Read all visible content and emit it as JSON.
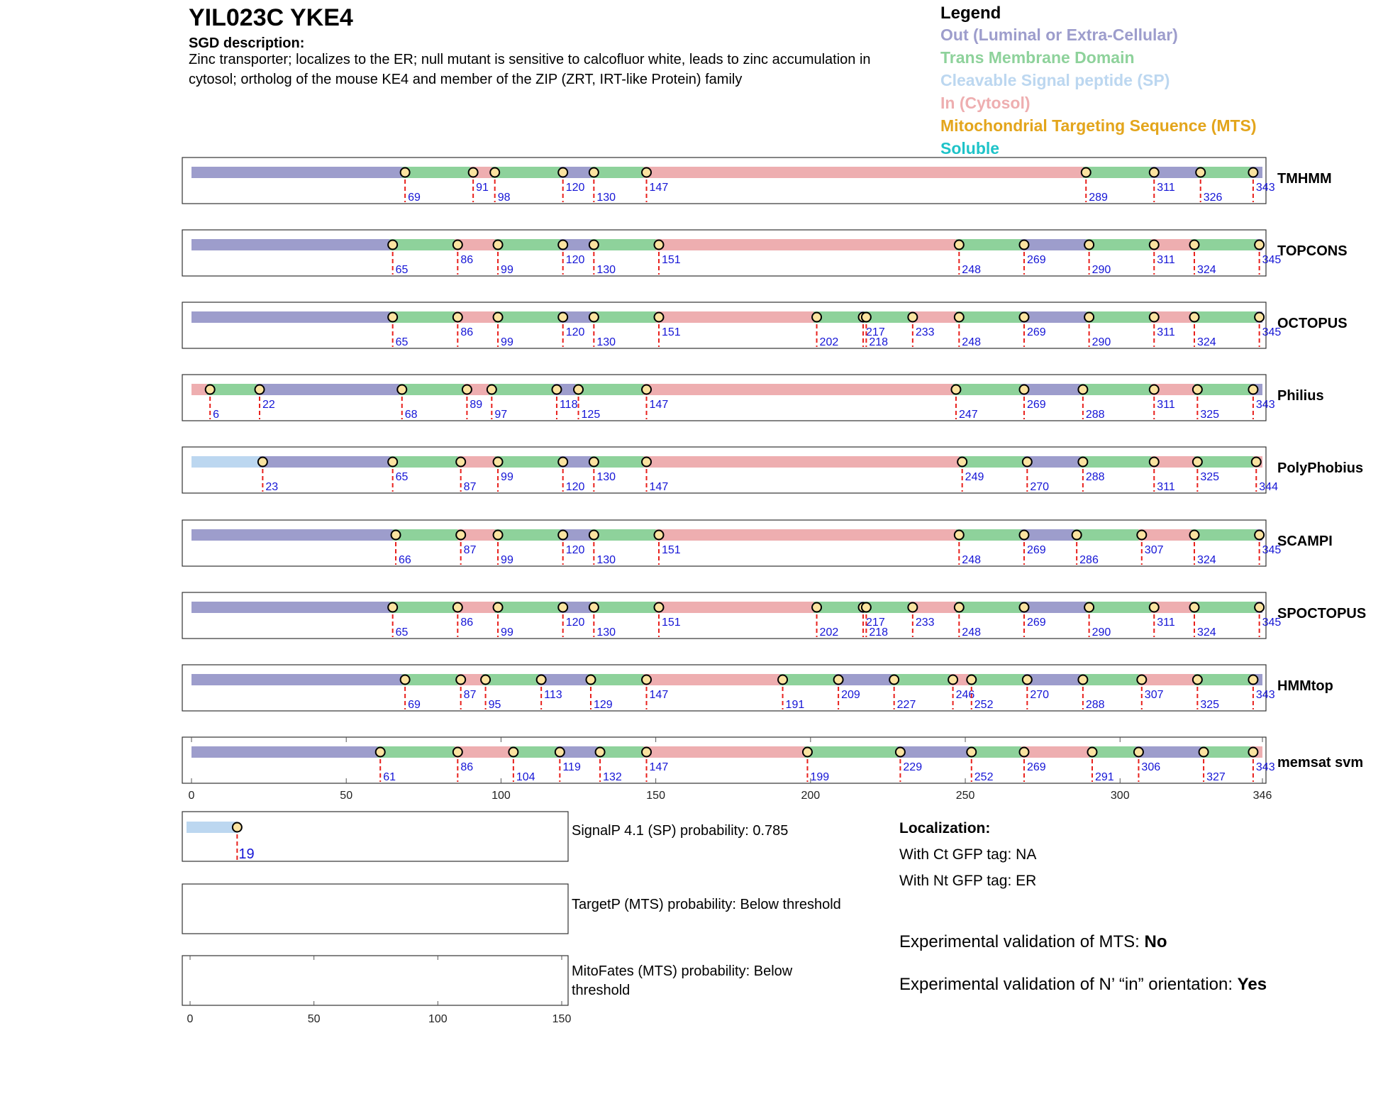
{
  "header": {
    "gene": "YIL023C  YKE4",
    "description_label": "SGD description:",
    "description": "Zinc transporter; localizes to the ER; null mutant is sensitive to calcofluor white, leads to zinc accumulation in cytosol; ortholog of the mouse KE4 and member of the ZIP (ZRT, IRT-like Protein) family"
  },
  "legend": {
    "title": "Legend",
    "items": [
      {
        "label": "Out (Luminal or Extra-Cellular)",
        "color": "#9d9dcc"
      },
      {
        "label": "Trans Membrane Domain",
        "color": "#8ed29b"
      },
      {
        "label": "Cleavable Signal peptide (SP)",
        "color": "#bcd7f0"
      },
      {
        "label": "In (Cytosol)",
        "color": "#eeaeb0"
      },
      {
        "label": "Mitochondrial Targeting Sequence (MTS)",
        "color": "#e3a51c"
      },
      {
        "label": "Soluble",
        "color": "#1ec3c8"
      }
    ]
  },
  "chart_data": {
    "type": "topology-track",
    "protein_length": 346,
    "x_axis": {
      "range": [
        0,
        346
      ],
      "ticks": [
        0,
        50,
        100,
        150,
        200,
        250,
        300,
        346
      ]
    },
    "tracks": [
      {
        "name": "TMHMM",
        "segments": [
          [
            1,
            69,
            "out"
          ],
          [
            69,
            91,
            "tm"
          ],
          [
            91,
            98,
            "in"
          ],
          [
            98,
            120,
            "tm"
          ],
          [
            120,
            130,
            "out"
          ],
          [
            130,
            147,
            "tm"
          ],
          [
            147,
            289,
            "in"
          ],
          [
            289,
            311,
            "tm"
          ],
          [
            311,
            326,
            "out"
          ],
          [
            326,
            343,
            "tm"
          ],
          [
            343,
            346,
            "out"
          ]
        ],
        "boundaries": [
          69,
          91,
          98,
          120,
          130,
          147,
          289,
          311,
          326,
          343
        ]
      },
      {
        "name": "TOPCONS",
        "segments": [
          [
            1,
            65,
            "out"
          ],
          [
            65,
            86,
            "tm"
          ],
          [
            86,
            99,
            "in"
          ],
          [
            99,
            120,
            "tm"
          ],
          [
            120,
            130,
            "out"
          ],
          [
            130,
            151,
            "tm"
          ],
          [
            151,
            248,
            "in"
          ],
          [
            248,
            269,
            "tm"
          ],
          [
            269,
            290,
            "out"
          ],
          [
            290,
            311,
            "tm"
          ],
          [
            311,
            324,
            "in"
          ],
          [
            324,
            345,
            "tm"
          ],
          [
            345,
            346,
            "out"
          ]
        ],
        "boundaries": [
          65,
          86,
          99,
          120,
          130,
          151,
          248,
          269,
          290,
          311,
          324,
          345
        ]
      },
      {
        "name": "OCTOPUS",
        "segments": [
          [
            1,
            65,
            "out"
          ],
          [
            65,
            86,
            "tm"
          ],
          [
            86,
            99,
            "in"
          ],
          [
            99,
            120,
            "tm"
          ],
          [
            120,
            130,
            "out"
          ],
          [
            130,
            151,
            "tm"
          ],
          [
            151,
            202,
            "in"
          ],
          [
            202,
            217,
            "tm"
          ],
          [
            217,
            218,
            "out"
          ],
          [
            218,
            233,
            "tm"
          ],
          [
            233,
            248,
            "in"
          ],
          [
            248,
            269,
            "tm"
          ],
          [
            269,
            290,
            "out"
          ],
          [
            290,
            311,
            "tm"
          ],
          [
            311,
            324,
            "in"
          ],
          [
            324,
            345,
            "tm"
          ],
          [
            345,
            346,
            "out"
          ]
        ],
        "boundaries": [
          65,
          86,
          99,
          120,
          130,
          151,
          202,
          217,
          218,
          233,
          248,
          269,
          290,
          311,
          324,
          345
        ]
      },
      {
        "name": "Philius",
        "segments": [
          [
            1,
            6,
            "in"
          ],
          [
            6,
            22,
            "tm"
          ],
          [
            22,
            68,
            "out"
          ],
          [
            68,
            89,
            "tm"
          ],
          [
            89,
            97,
            "in"
          ],
          [
            97,
            118,
            "tm"
          ],
          [
            118,
            125,
            "out"
          ],
          [
            125,
            147,
            "tm"
          ],
          [
            147,
            247,
            "in"
          ],
          [
            247,
            269,
            "tm"
          ],
          [
            269,
            288,
            "out"
          ],
          [
            288,
            311,
            "tm"
          ],
          [
            311,
            325,
            "in"
          ],
          [
            325,
            343,
            "tm"
          ],
          [
            343,
            346,
            "out"
          ]
        ],
        "boundaries": [
          6,
          22,
          68,
          89,
          97,
          118,
          125,
          147,
          247,
          269,
          288,
          311,
          325,
          343
        ]
      },
      {
        "name": "PolyPhobius",
        "segments": [
          [
            1,
            23,
            "sp"
          ],
          [
            23,
            65,
            "out"
          ],
          [
            65,
            87,
            "tm"
          ],
          [
            87,
            99,
            "in"
          ],
          [
            99,
            120,
            "tm"
          ],
          [
            120,
            130,
            "out"
          ],
          [
            130,
            147,
            "tm"
          ],
          [
            147,
            249,
            "in"
          ],
          [
            249,
            270,
            "tm"
          ],
          [
            270,
            288,
            "out"
          ],
          [
            288,
            311,
            "tm"
          ],
          [
            311,
            325,
            "in"
          ],
          [
            325,
            344,
            "tm"
          ],
          [
            344,
            346,
            "in"
          ]
        ],
        "boundaries": [
          23,
          65,
          87,
          99,
          120,
          130,
          147,
          249,
          270,
          288,
          311,
          325,
          344
        ]
      },
      {
        "name": "SCAMPI",
        "segments": [
          [
            1,
            66,
            "out"
          ],
          [
            66,
            87,
            "tm"
          ],
          [
            87,
            99,
            "in"
          ],
          [
            99,
            120,
            "tm"
          ],
          [
            120,
            130,
            "out"
          ],
          [
            130,
            151,
            "tm"
          ],
          [
            151,
            248,
            "in"
          ],
          [
            248,
            269,
            "tm"
          ],
          [
            269,
            286,
            "out"
          ],
          [
            286,
            307,
            "tm"
          ],
          [
            307,
            324,
            "in"
          ],
          [
            324,
            345,
            "tm"
          ],
          [
            345,
            346,
            "out"
          ]
        ],
        "boundaries": [
          66,
          87,
          99,
          120,
          130,
          151,
          248,
          269,
          286,
          307,
          324,
          345
        ]
      },
      {
        "name": "SPOCTOPUS",
        "segments": [
          [
            1,
            65,
            "out"
          ],
          [
            65,
            86,
            "tm"
          ],
          [
            86,
            99,
            "in"
          ],
          [
            99,
            120,
            "tm"
          ],
          [
            120,
            130,
            "out"
          ],
          [
            130,
            151,
            "tm"
          ],
          [
            151,
            202,
            "in"
          ],
          [
            202,
            217,
            "tm"
          ],
          [
            217,
            218,
            "out"
          ],
          [
            218,
            233,
            "tm"
          ],
          [
            233,
            248,
            "in"
          ],
          [
            248,
            269,
            "tm"
          ],
          [
            269,
            290,
            "out"
          ],
          [
            290,
            311,
            "tm"
          ],
          [
            311,
            324,
            "in"
          ],
          [
            324,
            345,
            "tm"
          ],
          [
            345,
            346,
            "out"
          ]
        ],
        "boundaries": [
          65,
          86,
          99,
          120,
          130,
          151,
          202,
          217,
          218,
          233,
          248,
          269,
          290,
          311,
          324,
          345
        ]
      },
      {
        "name": "HMMtop",
        "segments": [
          [
            1,
            69,
            "out"
          ],
          [
            69,
            87,
            "tm"
          ],
          [
            87,
            95,
            "in"
          ],
          [
            95,
            113,
            "tm"
          ],
          [
            113,
            129,
            "out"
          ],
          [
            129,
            147,
            "tm"
          ],
          [
            147,
            191,
            "in"
          ],
          [
            191,
            209,
            "tm"
          ],
          [
            209,
            227,
            "out"
          ],
          [
            227,
            246,
            "tm"
          ],
          [
            246,
            252,
            "in"
          ],
          [
            252,
            270,
            "tm"
          ],
          [
            270,
            288,
            "out"
          ],
          [
            288,
            307,
            "tm"
          ],
          [
            307,
            325,
            "in"
          ],
          [
            325,
            343,
            "tm"
          ],
          [
            343,
            346,
            "out"
          ]
        ],
        "boundaries": [
          69,
          87,
          95,
          113,
          129,
          147,
          191,
          209,
          227,
          246,
          252,
          270,
          288,
          307,
          325,
          343
        ]
      },
      {
        "name": "memsat svm",
        "segments": [
          [
            1,
            61,
            "out"
          ],
          [
            61,
            86,
            "tm"
          ],
          [
            86,
            104,
            "in"
          ],
          [
            104,
            119,
            "tm"
          ],
          [
            119,
            132,
            "out"
          ],
          [
            132,
            147,
            "tm"
          ],
          [
            147,
            199,
            "in"
          ],
          [
            199,
            229,
            "tm"
          ],
          [
            229,
            252,
            "out"
          ],
          [
            252,
            269,
            "tm"
          ],
          [
            269,
            291,
            "in"
          ],
          [
            291,
            306,
            "tm"
          ],
          [
            306,
            327,
            "out"
          ],
          [
            327,
            343,
            "tm"
          ],
          [
            343,
            346,
            "in"
          ]
        ],
        "boundaries": [
          61,
          86,
          104,
          119,
          132,
          147,
          199,
          229,
          252,
          269,
          291,
          306,
          327,
          343
        ]
      }
    ],
    "signalp": {
      "label": "SignalP 4.1 (SP) probability: 0.785",
      "sp_end": 19
    },
    "targetp": {
      "label": "TargetP (MTS) probability: Below threshold"
    },
    "mitofates": {
      "label": "MitoFates (MTS) probability: Below threshold"
    },
    "small_axis": {
      "range": [
        0,
        150
      ],
      "ticks": [
        0,
        50,
        100,
        150
      ]
    }
  },
  "localization": {
    "title": "Localization:",
    "ct": "With Ct GFP tag: NA",
    "nt": "With Nt GFP tag: ER",
    "mts_label": "Experimental validation of MTS: ",
    "mts_value": "No",
    "nin_label": "Experimental validation of N’ “in” orientation: ",
    "nin_value": "Yes"
  }
}
